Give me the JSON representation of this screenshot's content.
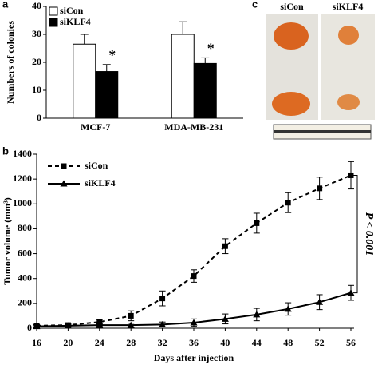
{
  "panel_labels": [
    "a",
    "b",
    "c"
  ],
  "photo": {
    "labels": [
      "siCon",
      "siKLF4"
    ]
  },
  "chart_data": [
    {
      "type": "bar",
      "y_label": "Numbers of colonies",
      "categories": [
        "MCF-7",
        "MDA-MB-231"
      ],
      "series": [
        {
          "name": "siCon",
          "color": "#ffffff",
          "values": [
            26.5,
            30
          ],
          "errors": [
            3.5,
            4.5
          ]
        },
        {
          "name": "siKLF4",
          "color": "#000000",
          "values": [
            16.7,
            19.6
          ],
          "errors": [
            2.5,
            2
          ]
        }
      ],
      "significance_marks": [
        "*",
        "*"
      ],
      "ylim": [
        0,
        40
      ],
      "yticks": [
        0,
        10,
        20,
        30,
        40
      ]
    },
    {
      "type": "line",
      "x_label": "Days after injection",
      "y_label": "Tumor volume (mm³)",
      "x": [
        16,
        20,
        24,
        28,
        32,
        36,
        40,
        44,
        48,
        52,
        56
      ],
      "series": [
        {
          "name": "siCon",
          "color": "#000000",
          "line_style": "dashed",
          "marker": "square",
          "values": [
            20,
            25,
            50,
            100,
            240,
            420,
            660,
            845,
            1010,
            1125,
            1230
          ],
          "errors": [
            10,
            10,
            20,
            40,
            60,
            50,
            60,
            80,
            80,
            90,
            110
          ]
        },
        {
          "name": "siKLF4",
          "color": "#000000",
          "line_style": "solid",
          "marker": "triangle",
          "values": [
            15,
            20,
            25,
            25,
            30,
            45,
            75,
            110,
            155,
            210,
            285
          ],
          "errors": [
            10,
            10,
            10,
            15,
            20,
            30,
            40,
            50,
            50,
            60,
            60
          ]
        }
      ],
      "annotation": "P < 0.001",
      "xlim": [
        16,
        56
      ],
      "xticks": [
        16,
        20,
        24,
        28,
        32,
        36,
        40,
        44,
        48,
        52,
        56
      ],
      "ylim": [
        0,
        1400
      ],
      "yticks": [
        0,
        200,
        400,
        600,
        800,
        1000,
        1200,
        1400
      ]
    }
  ]
}
